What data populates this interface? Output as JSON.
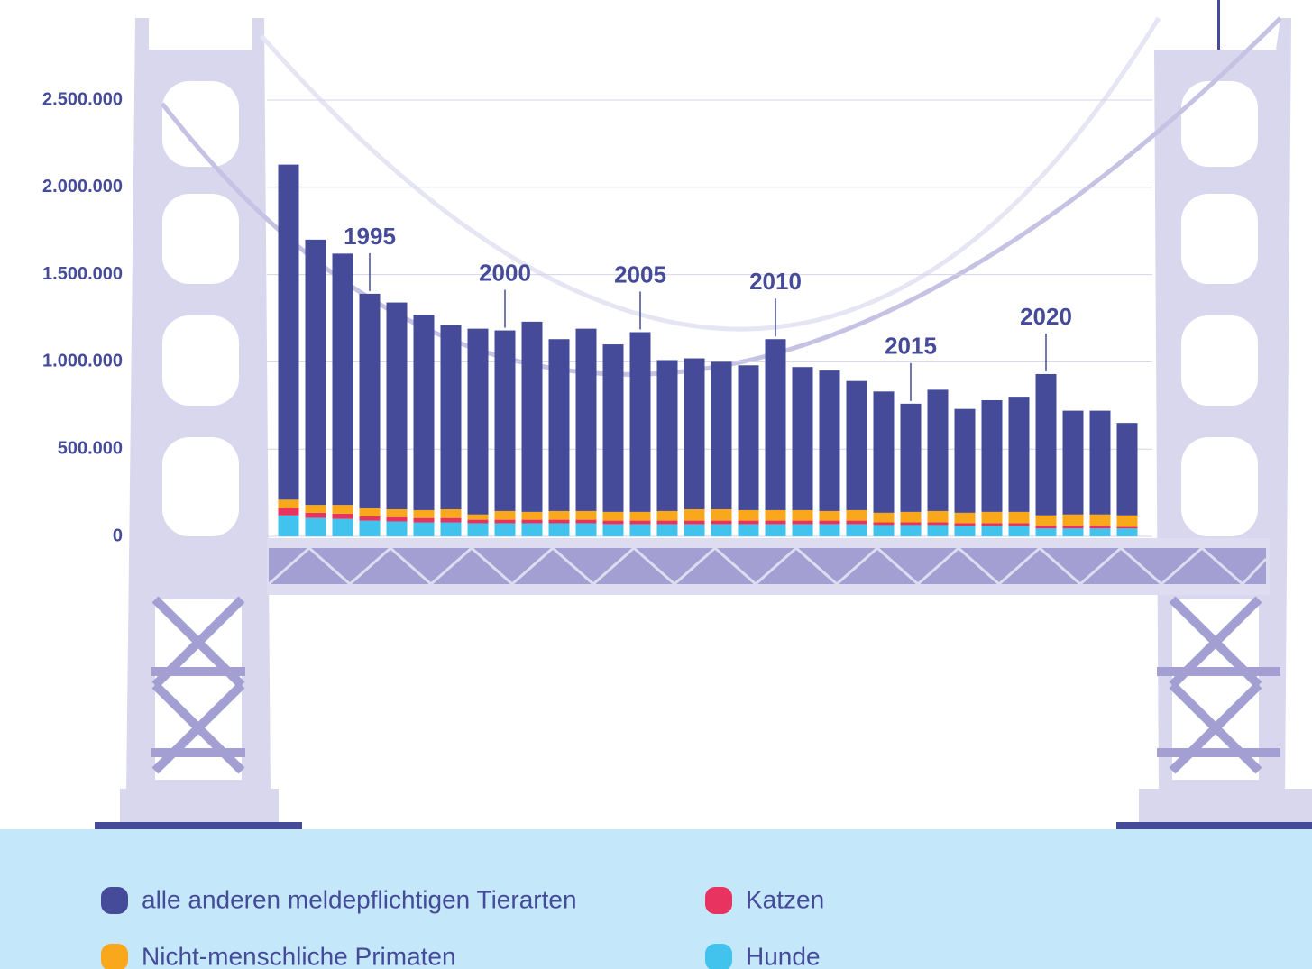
{
  "chart_data": {
    "type": "stacked_bar",
    "categories": [
      null,
      null,
      null,
      "1995",
      null,
      null,
      null,
      null,
      "2000",
      null,
      null,
      null,
      null,
      "2005",
      null,
      null,
      null,
      null,
      "2010",
      null,
      null,
      null,
      null,
      "2015",
      null,
      null,
      null,
      null,
      "2020",
      null,
      null,
      null
    ],
    "series": [
      {
        "name": "Hunde",
        "color": "#42c3ee",
        "values": [
          120000,
          105000,
          100000,
          90000,
          85000,
          80000,
          80000,
          75000,
          75000,
          75000,
          75000,
          75000,
          70000,
          70000,
          70000,
          70000,
          70000,
          70000,
          70000,
          70000,
          70000,
          70000,
          65000,
          65000,
          65000,
          60000,
          60000,
          60000,
          45000,
          45000,
          45000,
          45000
        ]
      },
      {
        "name": "Katzen",
        "color": "#e8325f",
        "values": [
          40000,
          30000,
          30000,
          25000,
          25000,
          25000,
          25000,
          20000,
          20000,
          20000,
          20000,
          20000,
          20000,
          20000,
          20000,
          20000,
          20000,
          20000,
          20000,
          20000,
          20000,
          20000,
          15000,
          15000,
          15000,
          15000,
          15000,
          15000,
          15000,
          15000,
          15000,
          10000
        ]
      },
      {
        "name": "Nicht-menschliche Primaten",
        "color": "#f9a81b",
        "values": [
          50000,
          45000,
          50000,
          45000,
          45000,
          45000,
          50000,
          30000,
          50000,
          45000,
          50000,
          50000,
          50000,
          50000,
          55000,
          65000,
          65000,
          60000,
          60000,
          60000,
          55000,
          60000,
          55000,
          60000,
          65000,
          60000,
          65000,
          65000,
          60000,
          65000,
          65000,
          65000
        ]
      },
      {
        "name": "alle anderen meldepflichtigen Tierarten",
        "color": "#454b99",
        "values": [
          1920000,
          1520000,
          1440000,
          1230000,
          1185000,
          1120000,
          1055000,
          1065000,
          1035000,
          1090000,
          985000,
          1045000,
          960000,
          1030000,
          865000,
          865000,
          845000,
          830000,
          980000,
          820000,
          805000,
          740000,
          695000,
          620000,
          695000,
          595000,
          640000,
          660000,
          810000,
          595000,
          595000,
          530000
        ]
      }
    ],
    "ylim": [
      0,
      2500000
    ],
    "yticks": [
      0,
      {
        "value": 500000,
        "label": "500.000"
      },
      {
        "value": 1000000,
        "label": "1.000.000"
      },
      {
        "value": 1500000,
        "label": "1.500.000"
      },
      {
        "value": 2000000,
        "label": "2.000.000"
      },
      {
        "value": 2500000,
        "label": "2.500.000"
      }
    ],
    "grid": true
  }
}
